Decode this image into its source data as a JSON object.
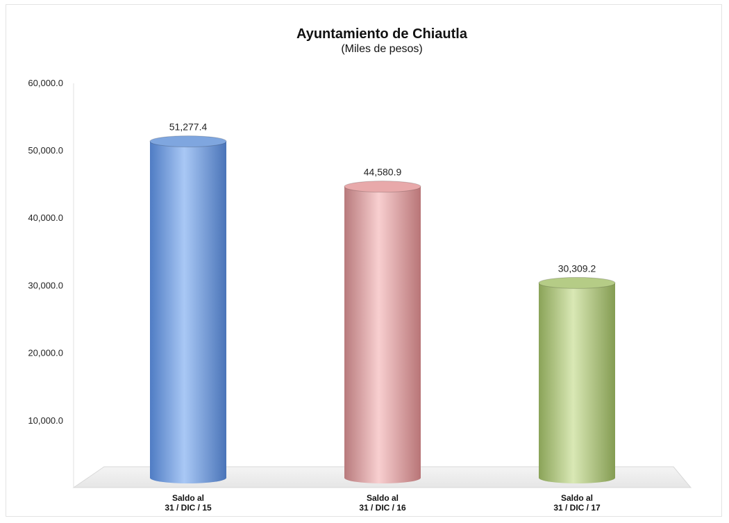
{
  "chart_data": {
    "type": "bar",
    "title": "Ayuntamiento de Chiautla",
    "subtitle": "(Miles de pesos)",
    "categories": [
      [
        "Saldo al",
        "31 / DIC / 15"
      ],
      [
        "Saldo al",
        "31 / DIC / 16"
      ],
      [
        "Saldo al",
        "31 / DIC / 17"
      ]
    ],
    "values": [
      51277.4,
      44580.9,
      30309.2
    ],
    "value_labels": [
      "51,277.4",
      "44,580.9",
      "30,309.2"
    ],
    "colors": [
      "#7fa6df",
      "#e8a9aa",
      "#b5cc86"
    ],
    "yticks": [
      "10,000.0",
      "20,000.0",
      "30,000.0",
      "40,000.0",
      "50,000.0",
      "60,000.0"
    ],
    "ylim": [
      0,
      60000
    ],
    "grid": false,
    "legend": "none"
  }
}
